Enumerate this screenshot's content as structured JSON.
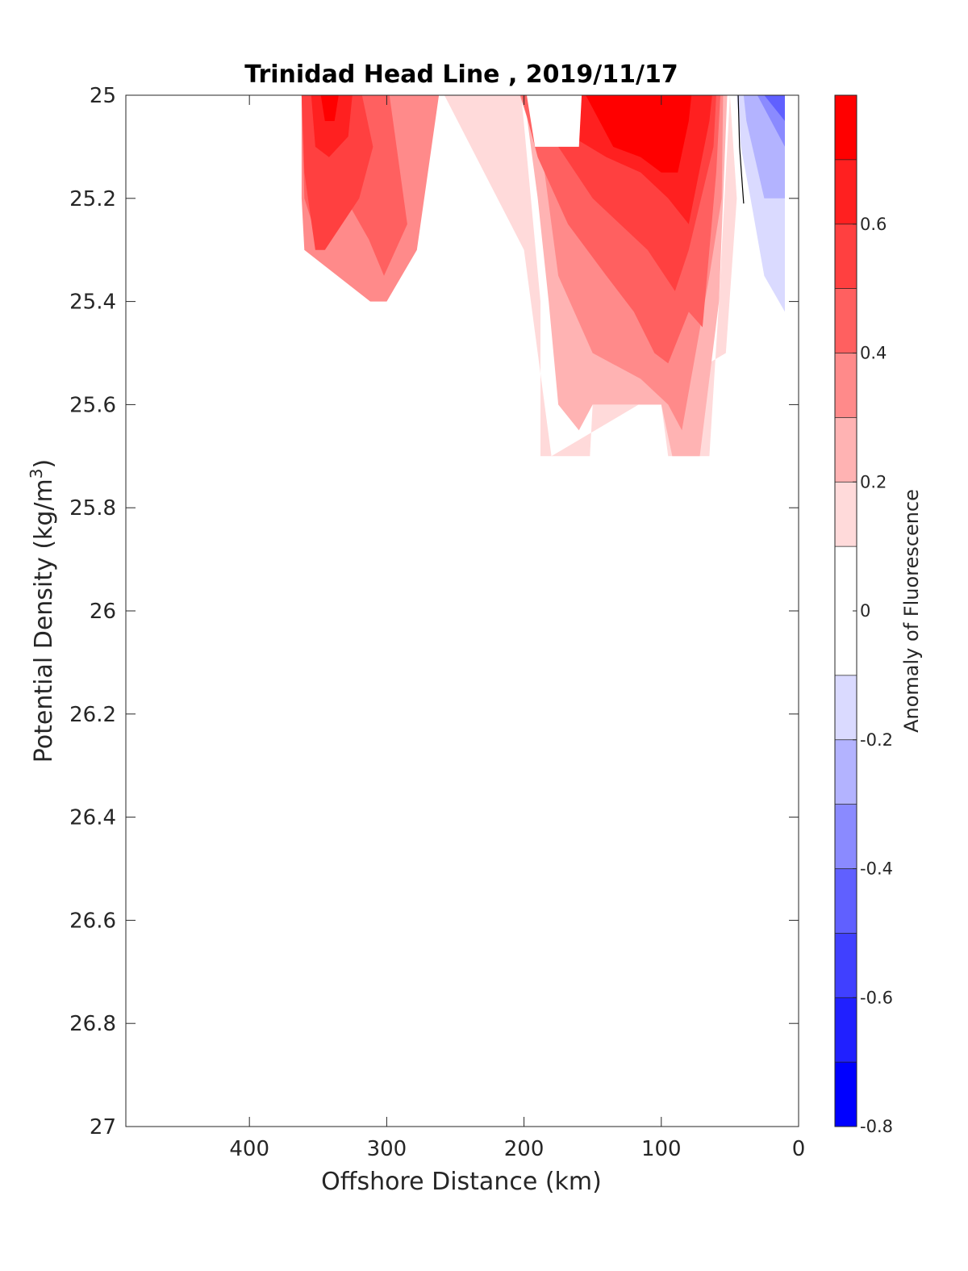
{
  "chart_data": {
    "type": "contourf",
    "title": "Trinidad Head Line , 2019/11/17",
    "xlabel": "Offshore Distance (km)",
    "ylabel_main": "Potential Density (kg/m",
    "ylabel_sup": "3",
    "ylabel_close": ")",
    "colorbar_label": "Anomaly of Fluorescence",
    "x_axis": {
      "reversed": true,
      "range": [
        490,
        0
      ],
      "ticks": [
        400,
        300,
        200,
        100,
        0
      ],
      "tick_labels": [
        "400",
        "300",
        "200",
        "100",
        "0"
      ]
    },
    "y_axis": {
      "reversed": true,
      "range": [
        25,
        27
      ],
      "ticks": [
        25,
        25.2,
        25.4,
        25.6,
        25.8,
        26,
        26.2,
        26.4,
        26.6,
        26.8,
        27
      ],
      "tick_labels": [
        "25",
        "25.2",
        "25.4",
        "25.6",
        "25.8",
        "26",
        "26.2",
        "26.4",
        "26.6",
        "26.8",
        "27"
      ]
    },
    "colorbar": {
      "range": [
        -0.8,
        0.8
      ],
      "ticks": [
        -0.8,
        -0.6,
        -0.4,
        -0.2,
        0,
        0.2,
        0.4,
        0.6
      ],
      "tick_labels": [
        "-0.8",
        "-0.6",
        "-0.4",
        "-0.2",
        "0",
        "0.2",
        "0.4",
        "0.6"
      ],
      "levels": [
        {
          "min": -0.8,
          "max": -0.7,
          "color": "#0000ff"
        },
        {
          "min": -0.7,
          "max": -0.6,
          "color": "#2020ff"
        },
        {
          "min": -0.6,
          "max": -0.5,
          "color": "#4040ff"
        },
        {
          "min": -0.5,
          "max": -0.4,
          "color": "#6060ff"
        },
        {
          "min": -0.4,
          "max": -0.3,
          "color": "#8a8aff"
        },
        {
          "min": -0.3,
          "max": -0.2,
          "color": "#b3b3ff"
        },
        {
          "min": -0.2,
          "max": -0.1,
          "color": "#dadaff"
        },
        {
          "min": -0.1,
          "max": 0.1,
          "color": "#ffffff"
        },
        {
          "min": 0.1,
          "max": 0.2,
          "color": "#ffdada"
        },
        {
          "min": 0.2,
          "max": 0.3,
          "color": "#ffb3b3"
        },
        {
          "min": 0.3,
          "max": 0.4,
          "color": "#ff8a8a"
        },
        {
          "min": 0.4,
          "max": 0.5,
          "color": "#ff6060"
        },
        {
          "min": 0.5,
          "max": 0.6,
          "color": "#ff4040"
        },
        {
          "min": 0.6,
          "max": 0.7,
          "color": "#ff2020"
        },
        {
          "min": 0.7,
          "max": 0.8,
          "color": "#ff0000"
        }
      ]
    },
    "regions": [
      {
        "value": 0.35,
        "points": [
          [
            362,
            25
          ],
          [
            262,
            25
          ],
          [
            278,
            25.3
          ],
          [
            300,
            25.4
          ],
          [
            312,
            25.4
          ],
          [
            360,
            25.3
          ],
          [
            362,
            25.2
          ]
        ]
      },
      {
        "value": 0.45,
        "points": [
          [
            362,
            25
          ],
          [
            298,
            25
          ],
          [
            285,
            25.25
          ],
          [
            302,
            25.35
          ],
          [
            313,
            25.28
          ],
          [
            330,
            25.2
          ],
          [
            348,
            25.3
          ],
          [
            360,
            25.2
          ]
        ]
      },
      {
        "value": 0.55,
        "points": [
          [
            362,
            25
          ],
          [
            318,
            25
          ],
          [
            310,
            25.1
          ],
          [
            320,
            25.2
          ],
          [
            345,
            25.3
          ],
          [
            352,
            25.3
          ],
          [
            360,
            25.15
          ]
        ]
      },
      {
        "value": 0.65,
        "points": [
          [
            355,
            25
          ],
          [
            325,
            25
          ],
          [
            328,
            25.08
          ],
          [
            342,
            25.12
          ],
          [
            352,
            25.1
          ]
        ]
      },
      {
        "value": 0.75,
        "points": [
          [
            348,
            25
          ],
          [
            335,
            25
          ],
          [
            338,
            25.05
          ],
          [
            345,
            25.05
          ]
        ]
      },
      {
        "value": 0.15,
        "points": [
          [
            258,
            25
          ],
          [
            202,
            25
          ],
          [
            188,
            25.4
          ],
          [
            188,
            25.7
          ],
          [
            152,
            25.7
          ],
          [
            150,
            25.6
          ],
          [
            100,
            25.6
          ],
          [
            95,
            25.7
          ],
          [
            65,
            25.7
          ],
          [
            58,
            25.4
          ],
          [
            50,
            25
          ],
          [
            45,
            25.2
          ],
          [
            53,
            25.5
          ],
          [
            180,
            25.7
          ],
          [
            200,
            25.3
          ]
        ]
      },
      {
        "value": 0.25,
        "points": [
          [
            258,
            25
          ],
          [
            200,
            25
          ],
          [
            190,
            25.2
          ],
          [
            182,
            25.4
          ],
          [
            175,
            25.6
          ],
          [
            160,
            25.65
          ],
          [
            150,
            25.6
          ],
          [
            100,
            25.6
          ],
          [
            92,
            25.7
          ],
          [
            72,
            25.7
          ],
          [
            58,
            25.4
          ],
          [
            52,
            25
          ]
        ]
      },
      {
        "value": 0.35,
        "points": [
          [
            240,
            25
          ],
          [
            203,
            25
          ],
          [
            185,
            25.15
          ],
          [
            175,
            25.35
          ],
          [
            150,
            25.5
          ],
          [
            115,
            25.55
          ],
          [
            95,
            25.6
          ],
          [
            85,
            25.65
          ],
          [
            65,
            25.35
          ],
          [
            56,
            25.2
          ],
          [
            55,
            25
          ]
        ]
      },
      {
        "value": 0.45,
        "points": [
          [
            228,
            25
          ],
          [
            202,
            25
          ],
          [
            190,
            25.12
          ],
          [
            168,
            25.25
          ],
          [
            140,
            25.35
          ],
          [
            120,
            25.42
          ],
          [
            105,
            25.5
          ],
          [
            95,
            25.52
          ],
          [
            80,
            25.42
          ],
          [
            70,
            25.45
          ],
          [
            60,
            25.15
          ],
          [
            57,
            25
          ]
        ]
      },
      {
        "value": 0.55,
        "points": [
          [
            195,
            25
          ],
          [
            175,
            25.1
          ],
          [
            150,
            25.2
          ],
          [
            130,
            25.25
          ],
          [
            110,
            25.3
          ],
          [
            90,
            25.38
          ],
          [
            80,
            25.3
          ],
          [
            62,
            25.1
          ],
          [
            60,
            25
          ]
        ]
      },
      {
        "value": 0.65,
        "points": [
          [
            180,
            25
          ],
          [
            165,
            25.08
          ],
          [
            140,
            25.12
          ],
          [
            115,
            25.15
          ],
          [
            95,
            25.2
          ],
          [
            80,
            25.25
          ],
          [
            65,
            25.05
          ],
          [
            63,
            25
          ]
        ]
      },
      {
        "value": 0.75,
        "points": [
          [
            155,
            25
          ],
          [
            135,
            25.1
          ],
          [
            115,
            25.12
          ],
          [
            100,
            25.15
          ],
          [
            88,
            25.15
          ],
          [
            80,
            25.05
          ],
          [
            78,
            25
          ]
        ]
      },
      {
        "value": -0.05,
        "points": [
          [
            198,
            25
          ],
          [
            158,
            25
          ],
          [
            160,
            25.1
          ],
          [
            192,
            25.1
          ]
        ]
      },
      {
        "value": -0.15,
        "points": [
          [
            45,
            25
          ],
          [
            10,
            25
          ],
          [
            10,
            25.42
          ],
          [
            25,
            25.35
          ],
          [
            35,
            25.2
          ],
          [
            42,
            25.1
          ]
        ]
      },
      {
        "value": -0.25,
        "points": [
          [
            40,
            25
          ],
          [
            10,
            25
          ],
          [
            10,
            25.2
          ],
          [
            25,
            25.2
          ],
          [
            38,
            25.05
          ]
        ]
      },
      {
        "value": -0.35,
        "points": [
          [
            30,
            25
          ],
          [
            10,
            25
          ],
          [
            10,
            25.1
          ],
          [
            20,
            25.05
          ]
        ]
      },
      {
        "value": -0.45,
        "points": [
          [
            25,
            25
          ],
          [
            10,
            25
          ],
          [
            10,
            25.05
          ]
        ]
      }
    ],
    "zero_contour": [
      [
        44,
        25
      ],
      [
        43,
        25.1
      ],
      [
        40,
        25.21
      ]
    ]
  }
}
